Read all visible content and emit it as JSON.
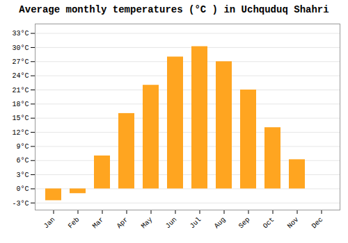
{
  "chart_data": {
    "type": "bar",
    "title": "Average monthly temperatures (°C ) in Uchquduq Shahri",
    "categories": [
      "Jan",
      "Feb",
      "Mar",
      "Apr",
      "May",
      "Jun",
      "Jul",
      "Aug",
      "Sep",
      "Oct",
      "Nov",
      "Dec"
    ],
    "values": [
      -2.5,
      -1.0,
      7.0,
      16.0,
      22.0,
      28.0,
      30.2,
      27.0,
      21.0,
      13.0,
      6.2,
      0.0
    ],
    "color": "#FFA520",
    "ylim": [
      -4.5,
      35
    ],
    "yticks": [
      {
        "value": -3,
        "label": "-3°C"
      },
      {
        "value": 0,
        "label": "0°C"
      },
      {
        "value": 3,
        "label": "3°C"
      },
      {
        "value": 6,
        "label": "6°C"
      },
      {
        "value": 9,
        "label": "9°C"
      },
      {
        "value": 12,
        "label": "12°C"
      },
      {
        "value": 15,
        "label": "15°C"
      },
      {
        "value": 18,
        "label": "18°C"
      },
      {
        "value": 21,
        "label": "21°C"
      },
      {
        "value": 24,
        "label": "24°C"
      },
      {
        "value": 27,
        "label": "27°C"
      },
      {
        "value": 30,
        "label": "30°C"
      },
      {
        "value": 33,
        "label": "33°C"
      }
    ],
    "grid": true
  }
}
